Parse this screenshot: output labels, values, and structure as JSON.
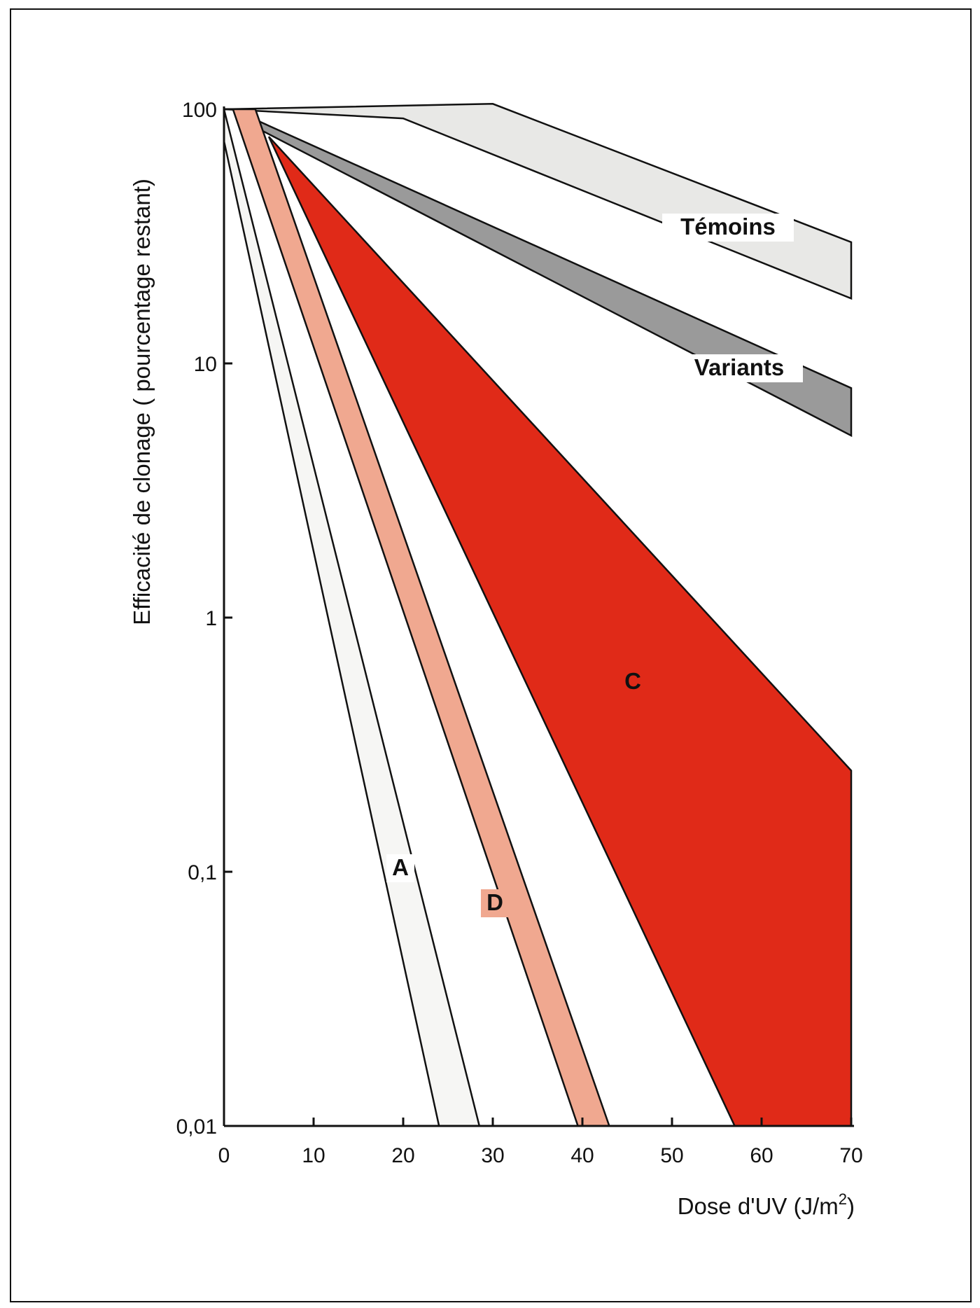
{
  "chart_data": {
    "type": "area",
    "xlabel": "Dose d'UV (J/m²)",
    "ylabel": "Efficacité de clonage ( pourcentage restant)",
    "xlim": [
      0,
      70
    ],
    "ylim": [
      0.01,
      100
    ],
    "yscale": "log",
    "grid": false,
    "x_ticks": [
      "0",
      "10",
      "20",
      "30",
      "40",
      "50",
      "60",
      "70"
    ],
    "y_ticks": [
      {
        "value": 100,
        "label": "100"
      },
      {
        "value": 10,
        "label": "10"
      },
      {
        "value": 1,
        "label": "1"
      },
      {
        "value": 0.1,
        "label": "0,1"
      },
      {
        "value": 0.01,
        "label": "0,01"
      }
    ],
    "series": [
      {
        "name": "Témoins",
        "color": "#e8e8e6",
        "upper": [
          [
            0,
            100
          ],
          [
            30,
            105
          ],
          [
            70,
            30
          ]
        ],
        "lower": [
          [
            0,
            100
          ],
          [
            20,
            92
          ],
          [
            70,
            18
          ]
        ]
      },
      {
        "name": "Variants",
        "color": "#9a9a9a",
        "upper": [
          [
            3.5,
            91
          ],
          [
            70,
            8
          ]
        ],
        "lower": [
          [
            3.5,
            85
          ],
          [
            70,
            5.2
          ]
        ]
      },
      {
        "name": "C",
        "color": "#e02a18",
        "upper": [
          [
            5,
            78
          ],
          [
            70,
            0.25
          ]
        ],
        "lower": [
          [
            5,
            78
          ],
          [
            57,
            0.01
          ]
        ],
        "right_edge": [
          [
            70,
            0.25
          ],
          [
            70,
            0.01
          ]
        ]
      },
      {
        "name": "D",
        "color": "#f0a890",
        "upper": [
          [
            1,
            100
          ],
          [
            39.5,
            0.01
          ]
        ],
        "lower": [
          [
            3.5,
            100
          ],
          [
            43,
            0.01
          ]
        ]
      },
      {
        "name": "A",
        "color": "#f6f6f4",
        "upper": [
          [
            0,
            75
          ],
          [
            24,
            0.01
          ]
        ],
        "lower": [
          [
            0,
            100
          ],
          [
            28.5,
            0.01
          ]
        ]
      }
    ]
  }
}
